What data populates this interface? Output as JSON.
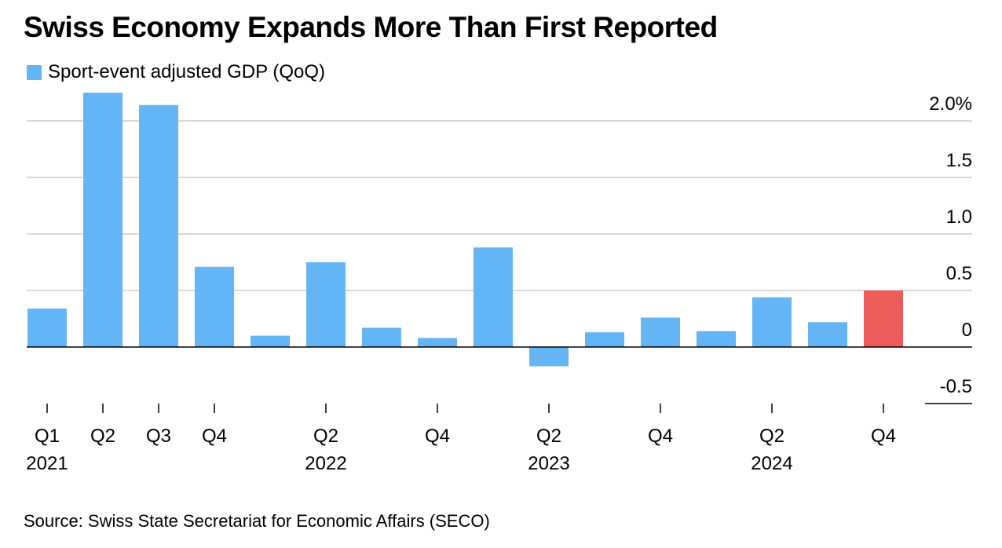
{
  "title": "Swiss Economy Expands More Than First Reported",
  "source": "Source: Swiss State Secretariat for Economic Affairs (SECO)",
  "colors": {
    "bar": "#64b5f6",
    "highlight": "#ee5c5c",
    "grid": "#d9d9d9",
    "axis": "#000000"
  },
  "chart_data": {
    "type": "bar",
    "categories": [
      "Q1 2021",
      "Q2 2021",
      "Q3 2021",
      "Q4 2021",
      "Q1 2022",
      "Q2 2022",
      "Q3 2022",
      "Q4 2022",
      "Q1 2023",
      "Q2 2023",
      "Q3 2023",
      "Q4 2023",
      "Q1 2024",
      "Q2 2024",
      "Q3 2024",
      "Q4 2024"
    ],
    "series": [
      {
        "name": "Sport-event adjusted GDP (QoQ)",
        "values": [
          0.34,
          2.25,
          2.14,
          0.71,
          0.1,
          0.75,
          0.17,
          0.08,
          0.88,
          -0.17,
          0.13,
          0.26,
          0.14,
          0.44,
          0.22,
          0.5
        ]
      }
    ],
    "highlight_index": 15,
    "ylim": [
      -0.5,
      2.0
    ],
    "yticks": [
      {
        "value": 2.0,
        "label": "2.0%"
      },
      {
        "value": 1.5,
        "label": "1.5"
      },
      {
        "value": 1.0,
        "label": "1.0"
      },
      {
        "value": 0.5,
        "label": "0.5"
      },
      {
        "value": 0,
        "label": "0"
      },
      {
        "value": -0.5,
        "label": "-0.5"
      }
    ],
    "xticks": [
      {
        "index": 0,
        "quarter": "Q1",
        "year": "2021"
      },
      {
        "index": 1,
        "quarter": "Q2",
        "year": ""
      },
      {
        "index": 2,
        "quarter": "Q3",
        "year": ""
      },
      {
        "index": 3,
        "quarter": "Q4",
        "year": ""
      },
      {
        "index": 5,
        "quarter": "Q2",
        "year": "2022"
      },
      {
        "index": 7,
        "quarter": "Q4",
        "year": ""
      },
      {
        "index": 9,
        "quarter": "Q2",
        "year": "2023"
      },
      {
        "index": 11,
        "quarter": "Q4",
        "year": ""
      },
      {
        "index": 13,
        "quarter": "Q2",
        "year": "2024"
      },
      {
        "index": 15,
        "quarter": "Q4",
        "year": ""
      }
    ],
    "grid": true,
    "legend_position": "top-left",
    "yaxis_position": "right"
  }
}
